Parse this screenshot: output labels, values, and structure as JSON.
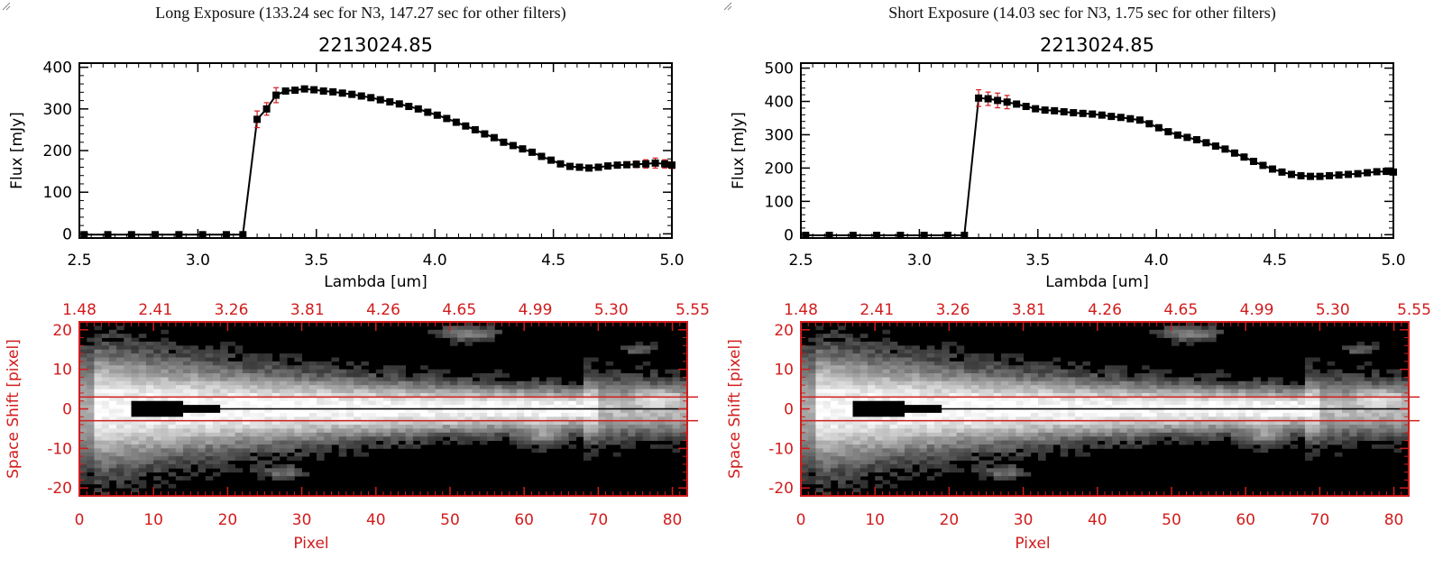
{
  "panels": [
    {
      "id": "long",
      "heading": "Long Exposure (133.24 sec for N3, 147.27 sec for other filters)",
      "chart_data": {
        "type": "line",
        "title": "2213024.85",
        "xlabel": "Lambda [um]",
        "ylabel": "Flux [mJy]",
        "xlim": [
          2.5,
          5.0
        ],
        "ylim": [
          -10,
          410
        ],
        "xticks": [
          "2.5",
          "3.0",
          "3.5",
          "4.0",
          "4.5",
          "5.0"
        ],
        "yticks": [
          "0",
          "100",
          "200",
          "300",
          "400"
        ],
        "series": [
          {
            "x": [
              2.52,
              2.62,
              2.72,
              2.82,
              2.92,
              3.02,
              3.12,
              3.19,
              3.25,
              3.29,
              3.33,
              3.37,
              3.41,
              3.45,
              3.49,
              3.53,
              3.57,
              3.61,
              3.65,
              3.69,
              3.73,
              3.77,
              3.81,
              3.85,
              3.89,
              3.93,
              3.97,
              4.01,
              4.05,
              4.09,
              4.13,
              4.17,
              4.21,
              4.25,
              4.29,
              4.33,
              4.37,
              4.41,
              4.45,
              4.49,
              4.53,
              4.57,
              4.61,
              4.65,
              4.69,
              4.73,
              4.77,
              4.81,
              4.85,
              4.89,
              4.93,
              4.97,
              5.0
            ],
            "y": [
              -2,
              -2,
              -2,
              -2,
              -2,
              -2,
              -2,
              -2,
              275,
              300,
              333,
              343,
              345,
              348,
              346,
              343,
              341,
              338,
              335,
              331,
              327,
              322,
              317,
              312,
              306,
              300,
              292,
              285,
              277,
              268,
              259,
              250,
              240,
              231,
              220,
              212,
              204,
              196,
              186,
              177,
              168,
              162,
              160,
              158,
              160,
              163,
              165,
              166,
              167,
              168,
              170,
              168,
              165
            ],
            "yerr": [
              0,
              0,
              0,
              0,
              0,
              0,
              0,
              0,
              20,
              15,
              18,
              6,
              5,
              5,
              4,
              4,
              4,
              4,
              4,
              4,
              4,
              4,
              4,
              4,
              4,
              4,
              4,
              4,
              4,
              4,
              4,
              4,
              4,
              4,
              4,
              4,
              4,
              4,
              4,
              4,
              4,
              4,
              4,
              5,
              5,
              6,
              6,
              7,
              8,
              10,
              12,
              10,
              8
            ],
            "markers": true
          }
        ]
      },
      "image_data": {
        "type": "heatmap",
        "top_axis_ticks": [
          "1.48",
          "2.41",
          "3.26",
          "3.81",
          "4.26",
          "4.65",
          "4.99",
          "5.30",
          "5.55"
        ],
        "xlabel": "Pixel",
        "ylabel": "Space Shift [pixel]",
        "xlim": [
          0,
          82
        ],
        "ylim": [
          -22,
          22
        ],
        "xticks": [
          "0",
          "10",
          "20",
          "30",
          "40",
          "50",
          "60",
          "70",
          "80"
        ],
        "yticks": [
          "20",
          "10",
          "0",
          "-10",
          "-20"
        ],
        "aperture_lines_y": [
          3,
          -3
        ],
        "saturated_region": "pixels 8-19 near 0"
      }
    },
    {
      "id": "short",
      "heading": "Short Exposure (14.03 sec for N3, 1.75 sec for other filters)",
      "chart_data": {
        "type": "line",
        "title": "2213024.85",
        "xlabel": "Lambda [um]",
        "ylabel": "Flux [mJy]",
        "xlim": [
          2.5,
          5.0
        ],
        "ylim": [
          -10,
          515
        ],
        "xticks": [
          "2.5",
          "3.0",
          "3.5",
          "4.0",
          "4.5",
          "5.0"
        ],
        "yticks": [
          "0",
          "100",
          "200",
          "300",
          "400",
          "500"
        ],
        "series": [
          {
            "x": [
              2.52,
              2.62,
              2.72,
              2.82,
              2.92,
              3.02,
              3.12,
              3.19,
              3.25,
              3.29,
              3.33,
              3.37,
              3.41,
              3.45,
              3.49,
              3.53,
              3.57,
              3.61,
              3.65,
              3.69,
              3.73,
              3.77,
              3.81,
              3.85,
              3.89,
              3.93,
              3.97,
              4.01,
              4.05,
              4.09,
              4.13,
              4.17,
              4.21,
              4.25,
              4.29,
              4.33,
              4.37,
              4.41,
              4.45,
              4.49,
              4.53,
              4.57,
              4.61,
              4.65,
              4.69,
              4.73,
              4.77,
              4.81,
              4.85,
              4.89,
              4.93,
              4.97,
              5.0
            ],
            "y": [
              -2,
              -2,
              -2,
              -2,
              -2,
              -2,
              -2,
              -2,
              410,
              408,
              403,
              398,
              392,
              385,
              378,
              374,
              372,
              369,
              366,
              364,
              362,
              359,
              355,
              352,
              348,
              344,
              333,
              321,
              309,
              299,
              292,
              285,
              276,
              266,
              257,
              245,
              233,
              220,
              208,
              197,
              188,
              181,
              177,
              175,
              175,
              177,
              179,
              181,
              183,
              186,
              189,
              190,
              188
            ],
            "yerr": [
              0,
              0,
              0,
              0,
              0,
              0,
              0,
              0,
              25,
              20,
              22,
              20,
              6,
              5,
              5,
              5,
              5,
              5,
              5,
              5,
              5,
              5,
              5,
              5,
              5,
              5,
              5,
              5,
              5,
              5,
              5,
              5,
              5,
              5,
              5,
              5,
              5,
              5,
              5,
              5,
              5,
              5,
              5,
              5,
              5,
              5,
              5,
              5,
              5,
              6,
              6,
              6,
              5
            ],
            "markers": true
          }
        ]
      },
      "image_data": {
        "type": "heatmap",
        "top_axis_ticks": [
          "1.48",
          "2.41",
          "3.26",
          "3.81",
          "4.26",
          "4.65",
          "4.99",
          "5.30",
          "5.55"
        ],
        "xlabel": "Pixel",
        "ylabel": "Space Shift [pixel]",
        "xlim": [
          0,
          82
        ],
        "ylim": [
          -22,
          22
        ],
        "xticks": [
          "0",
          "10",
          "20",
          "30",
          "40",
          "50",
          "60",
          "70",
          "80"
        ],
        "yticks": [
          "20",
          "10",
          "0",
          "-10",
          "-20"
        ],
        "aperture_lines_y": [
          3,
          -3
        ],
        "saturated_region": "pixels 8-19 near 0"
      }
    }
  ],
  "colors": {
    "axis": "#000000",
    "image_axis": "#d21c1c",
    "error_bar": "#d21c1c",
    "marker": "#000000",
    "background": "#ffffff"
  }
}
